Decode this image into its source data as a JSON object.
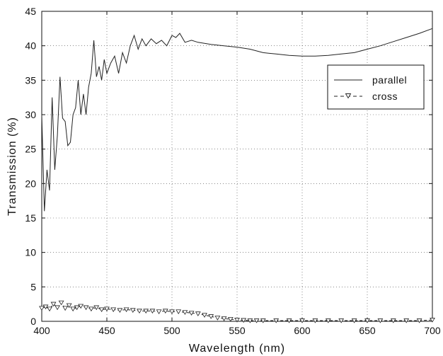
{
  "chart_data": {
    "type": "line",
    "title": "",
    "xlabel": "Wavelength (nm)",
    "ylabel": "Transmission (%)",
    "xlim": [
      400,
      700
    ],
    "ylim": [
      0,
      45
    ],
    "xticks": [
      400,
      450,
      500,
      550,
      600,
      650,
      700
    ],
    "yticks": [
      0,
      5,
      10,
      15,
      20,
      25,
      30,
      35,
      40,
      45
    ],
    "grid": true,
    "legend_position": "top-right",
    "series": [
      {
        "name": "parallel",
        "color": "#222222",
        "marker": "none",
        "line_style": "solid",
        "x": [
          400,
          402,
          404,
          406,
          408,
          410,
          412,
          414,
          416,
          418,
          420,
          422,
          424,
          426,
          428,
          430,
          432,
          434,
          436,
          438,
          440,
          442,
          444,
          446,
          448,
          450,
          453,
          456,
          459,
          462,
          465,
          468,
          471,
          474,
          477,
          480,
          484,
          488,
          492,
          496,
          500,
          503,
          506,
          510,
          515,
          520,
          530,
          540,
          550,
          560,
          570,
          580,
          590,
          600,
          610,
          620,
          630,
          640,
          650,
          660,
          670,
          680,
          690,
          700
        ],
        "y": [
          30.0,
          16.0,
          22.0,
          19.0,
          32.5,
          22.0,
          27.0,
          35.5,
          29.5,
          29.0,
          25.5,
          26.0,
          30.0,
          31.0,
          35.0,
          30.0,
          33.0,
          30.0,
          34.0,
          36.0,
          40.8,
          35.5,
          37.0,
          35.0,
          38.0,
          36.0,
          37.5,
          38.5,
          36.0,
          39.0,
          37.5,
          40.0,
          41.5,
          39.5,
          41.0,
          40.0,
          41.0,
          40.3,
          40.8,
          40.0,
          41.5,
          41.2,
          41.8,
          40.5,
          40.8,
          40.5,
          40.2,
          40.0,
          39.8,
          39.5,
          39.0,
          38.8,
          38.6,
          38.5,
          38.5,
          38.6,
          38.8,
          39.0,
          39.5,
          40.0,
          40.6,
          41.2,
          41.8,
          42.5
        ]
      },
      {
        "name": "cross",
        "color": "#222222",
        "marker": "triangle-down",
        "line_style": "dashed",
        "x": [
          400,
          403,
          406,
          409,
          412,
          415,
          418,
          421,
          424,
          427,
          430,
          434,
          438,
          442,
          446,
          450,
          455,
          460,
          465,
          470,
          475,
          480,
          485,
          490,
          495,
          500,
          505,
          510,
          515,
          520,
          525,
          530,
          535,
          540,
          545,
          550,
          555,
          560,
          565,
          570,
          580,
          590,
          600,
          610,
          620,
          630,
          640,
          650,
          660,
          670,
          680,
          690,
          700
        ],
        "y": [
          1.9,
          2.1,
          1.8,
          2.5,
          2.0,
          2.7,
          1.9,
          2.3,
          1.8,
          2.0,
          2.2,
          2.0,
          1.8,
          2.0,
          1.7,
          1.8,
          1.7,
          1.6,
          1.7,
          1.6,
          1.5,
          1.5,
          1.5,
          1.4,
          1.5,
          1.4,
          1.4,
          1.3,
          1.2,
          1.1,
          0.9,
          0.7,
          0.5,
          0.4,
          0.3,
          0.2,
          0.15,
          0.1,
          0.1,
          0.1,
          0.1,
          0.1,
          0.1,
          0.1,
          0.1,
          0.1,
          0.1,
          0.1,
          0.1,
          0.1,
          0.1,
          0.1,
          0.2
        ]
      }
    ]
  }
}
